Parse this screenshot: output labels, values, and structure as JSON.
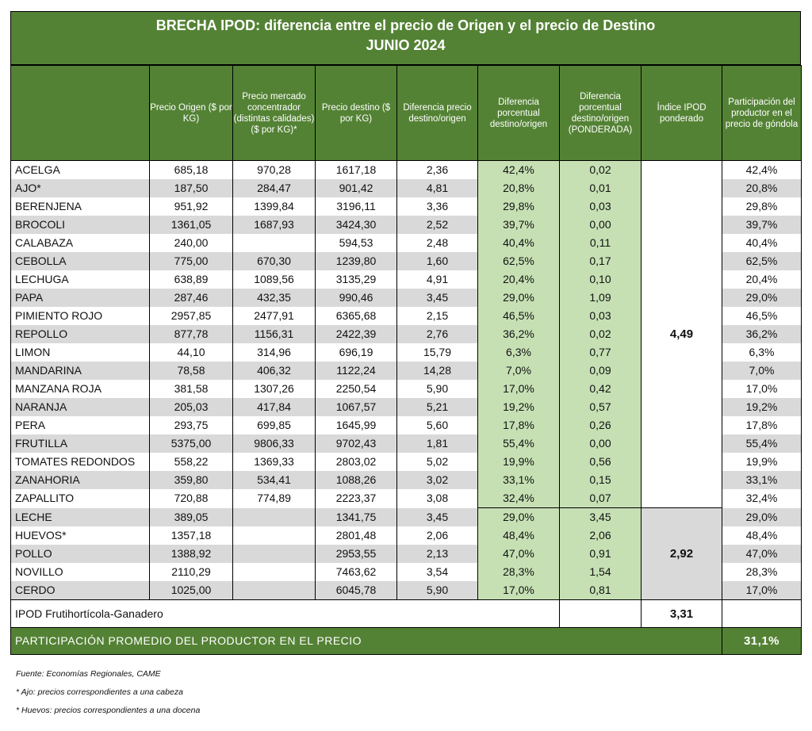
{
  "title_line1": "BRECHA IPOD: diferencia entre el precio de Origen y el precio de Destino",
  "title_line2": "JUNIO 2024",
  "headers": {
    "producto": "",
    "precio_origen": "Precio Origen ($ por KG)",
    "precio_mercado": "Precio mercado concentrador (distintas calidades) ($ por KG)*",
    "precio_destino": "Precio destino ($ por KG)",
    "diferencia_precio": "Diferencia precio destino/origen",
    "diferencia_porcentual": "Diferencia porcentual destino/origen",
    "diferencia_ponderada": "Diferencia porcentual destino/origen (PONDERADA)",
    "indice_ipod": "Índice IPOD ponderado",
    "participacion": "Participación del productor en el precio de góndola"
  },
  "rows": [
    {
      "producto": "ACELGA",
      "origen": "685,18",
      "mercado": "970,28",
      "destino": "1617,18",
      "dif": "2,36",
      "difpct": "42,4%",
      "pond": "0,02",
      "part": "42,4%"
    },
    {
      "producto": "AJO*",
      "origen": "187,50",
      "mercado": "284,47",
      "destino": "901,42",
      "dif": "4,81",
      "difpct": "20,8%",
      "pond": "0,01",
      "part": "20,8%"
    },
    {
      "producto": "BERENJENA",
      "origen": "951,92",
      "mercado": "1399,84",
      "destino": "3196,11",
      "dif": "3,36",
      "difpct": "29,8%",
      "pond": "0,03",
      "part": "29,8%"
    },
    {
      "producto": "BROCOLI",
      "origen": "1361,05",
      "mercado": "1687,93",
      "destino": "3424,30",
      "dif": "2,52",
      "difpct": "39,7%",
      "pond": "0,00",
      "part": "39,7%"
    },
    {
      "producto": "CALABAZA",
      "origen": "240,00",
      "mercado": "",
      "destino": "594,53",
      "dif": "2,48",
      "difpct": "40,4%",
      "pond": "0,11",
      "part": "40,4%"
    },
    {
      "producto": "CEBOLLA",
      "origen": "775,00",
      "mercado": "670,30",
      "destino": "1239,80",
      "dif": "1,60",
      "difpct": "62,5%",
      "pond": "0,17",
      "part": "62,5%"
    },
    {
      "producto": "LECHUGA",
      "origen": "638,89",
      "mercado": "1089,56",
      "destino": "3135,29",
      "dif": "4,91",
      "difpct": "20,4%",
      "pond": "0,10",
      "part": "20,4%"
    },
    {
      "producto": "PAPA",
      "origen": "287,46",
      "mercado": "432,35",
      "destino": "990,46",
      "dif": "3,45",
      "difpct": "29,0%",
      "pond": "1,09",
      "part": "29,0%"
    },
    {
      "producto": "PIMIENTO ROJO",
      "origen": "2957,85",
      "mercado": "2477,91",
      "destino": "6365,68",
      "dif": "2,15",
      "difpct": "46,5%",
      "pond": "0,03",
      "part": "46,5%"
    },
    {
      "producto": "REPOLLO",
      "origen": "877,78",
      "mercado": "1156,31",
      "destino": "2422,39",
      "dif": "2,76",
      "difpct": "36,2%",
      "pond": "0,02",
      "part": "36,2%"
    },
    {
      "producto": "LIMON",
      "origen": "44,10",
      "mercado": "314,96",
      "destino": "696,19",
      "dif": "15,79",
      "difpct": "6,3%",
      "pond": "0,77",
      "part": "6,3%"
    },
    {
      "producto": "MANDARINA",
      "origen": "78,58",
      "mercado": "406,32",
      "destino": "1122,24",
      "dif": "14,28",
      "difpct": "7,0%",
      "pond": "0,09",
      "part": "7,0%"
    },
    {
      "producto": "MANZANA ROJA",
      "origen": "381,58",
      "mercado": "1307,26",
      "destino": "2250,54",
      "dif": "5,90",
      "difpct": "17,0%",
      "pond": "0,42",
      "part": "17,0%"
    },
    {
      "producto": "NARANJA",
      "origen": "205,03",
      "mercado": "417,84",
      "destino": "1067,57",
      "dif": "5,21",
      "difpct": "19,2%",
      "pond": "0,57",
      "part": "19,2%"
    },
    {
      "producto": "PERA",
      "origen": "293,75",
      "mercado": "699,85",
      "destino": "1645,99",
      "dif": "5,60",
      "difpct": "17,8%",
      "pond": "0,26",
      "part": "17,8%"
    },
    {
      "producto": "FRUTILLA",
      "origen": "5375,00",
      "mercado": "9806,33",
      "destino": "9702,43",
      "dif": "1,81",
      "difpct": "55,4%",
      "pond": "0,00",
      "part": "55,4%"
    },
    {
      "producto": "TOMATES REDONDOS",
      "origen": "558,22",
      "mercado": "1369,33",
      "destino": "2803,02",
      "dif": "5,02",
      "difpct": "19,9%",
      "pond": "0,56",
      "part": "19,9%"
    },
    {
      "producto": "ZANAHORIA",
      "origen": "359,80",
      "mercado": "534,41",
      "destino": "1088,26",
      "dif": "3,02",
      "difpct": "33,1%",
      "pond": "0,15",
      "part": "33,1%"
    },
    {
      "producto": "ZAPALLITO",
      "origen": "720,88",
      "mercado": "774,89",
      "destino": "2223,37",
      "dif": "3,08",
      "difpct": "32,4%",
      "pond": "0,07",
      "part": "32,4%"
    },
    {
      "producto": "LECHE",
      "origen": "389,05",
      "mercado": "",
      "destino": "1341,75",
      "dif": "3,45",
      "difpct": "29,0%",
      "pond": "3,45",
      "part": "29,0%"
    },
    {
      "producto": "HUEVOS*",
      "origen": "1357,18",
      "mercado": "",
      "destino": "2801,48",
      "dif": "2,06",
      "difpct": "48,4%",
      "pond": "2,06",
      "part": "48,4%"
    },
    {
      "producto": "POLLO",
      "origen": "1388,92",
      "mercado": "",
      "destino": "2953,55",
      "dif": "2,13",
      "difpct": "47,0%",
      "pond": "0,91",
      "part": "47,0%"
    },
    {
      "producto": "NOVILLO",
      "origen": "2110,29",
      "mercado": "",
      "destino": "7463,62",
      "dif": "3,54",
      "difpct": "28,3%",
      "pond": "1,54",
      "part": "28,3%"
    },
    {
      "producto": "CERDO",
      "origen": "1025,00",
      "mercado": "",
      "destino": "6045,78",
      "dif": "5,90",
      "difpct": "17,0%",
      "pond": "0,81",
      "part": "17,0%"
    }
  ],
  "ipod_fruti": "4,49",
  "ipod_ganadero": "2,92",
  "summary_label": "IPOD Frutihortícola-Ganadero",
  "summary_value": "3,31",
  "participacion_label": "PARTICIPACIÓN PROMEDIO DEL PRODUCTOR EN EL PRECIO",
  "participacion_value": "31,1%",
  "notes": [
    "Fuente: Economías Regionales, CAME",
    "* Ajo: precios correspondientes a una cabeza",
    "* Huevos: precios correspondientes a una docena"
  ]
}
